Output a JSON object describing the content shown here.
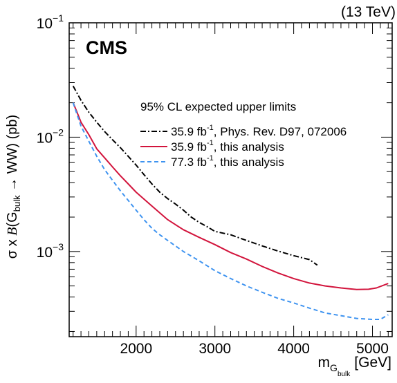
{
  "chart_data": {
    "type": "line",
    "experiment": "CMS",
    "energy": "(13 TeV)",
    "xlabel": {
      "main": "m",
      "sub": "G",
      "subsub": "bulk",
      "unit": "[GeV]"
    },
    "ylabel": {
      "pre": "σ x ",
      "b": "B",
      "mid": "(G",
      "sub": "bulk",
      "post": " → WW) (pb)"
    },
    "xlim": [
      1150,
      5250
    ],
    "ylim": [
      0.00018,
      0.1
    ],
    "yscale": "log",
    "xticks": [
      2000,
      3000,
      4000,
      5000
    ],
    "xtick_labels": [
      "2000",
      "3000",
      "4000",
      "5000"
    ],
    "ytick_labels": [
      {
        "value": 0.1,
        "base": "10",
        "exp": "−1"
      },
      {
        "value": 0.01,
        "base": "10",
        "exp": "−2"
      },
      {
        "value": 0.001,
        "base": "10",
        "exp": "−3"
      }
    ],
    "legend_title": "95% CL expected upper limits",
    "legend_placement": "top-right",
    "series": [
      {
        "legend_lumi": "35.9 fb",
        "legend_exp": "-1",
        "legend_text": ", Phys. Rev. D97, 072006",
        "color": "#000000",
        "dash": "8,3,2,3",
        "width": 2,
        "x": [
          1200,
          1300,
          1400,
          1500,
          1600,
          1700,
          1800,
          1900,
          2000,
          2100,
          2200,
          2300,
          2400,
          2500,
          2600,
          2700,
          2800,
          2900,
          3000,
          3200,
          3400,
          3600,
          3800,
          4000,
          4200,
          4300
        ],
        "y": [
          0.028,
          0.021,
          0.0165,
          0.0135,
          0.0112,
          0.0095,
          0.0081,
          0.0068,
          0.0057,
          0.0047,
          0.0039,
          0.0033,
          0.0029,
          0.0026,
          0.0023,
          0.002,
          0.0018,
          0.00165,
          0.0015,
          0.0014,
          0.00125,
          0.00112,
          0.00101,
          0.00092,
          0.00085,
          0.00076
        ]
      },
      {
        "legend_lumi": "35.9 fb",
        "legend_exp": "-1",
        "legend_text": ", this analysis",
        "color": "#d2143c",
        "dash": "",
        "width": 2,
        "x": [
          1200,
          1250,
          1300,
          1400,
          1500,
          1600,
          1700,
          1800,
          1900,
          2000,
          2200,
          2400,
          2600,
          2800,
          3000,
          3200,
          3400,
          3600,
          3800,
          4000,
          4200,
          4400,
          4600,
          4800,
          4950,
          5050,
          5200
        ],
        "y": [
          0.02,
          0.0165,
          0.0135,
          0.0105,
          0.0079,
          0.0066,
          0.0055,
          0.0046,
          0.0039,
          0.0033,
          0.0025,
          0.0019,
          0.00155,
          0.00133,
          0.00115,
          0.00098,
          0.00086,
          0.00074,
          0.00065,
          0.00058,
          0.00053,
          0.0005,
          0.00048,
          0.000465,
          0.000468,
          0.00048,
          0.000525
        ]
      },
      {
        "legend_lumi": "77.3 fb",
        "legend_exp": "-1",
        "legend_text": ", this analysis",
        "color": "#3e93f0",
        "dash": "6,4",
        "width": 2,
        "x": [
          1200,
          1300,
          1400,
          1500,
          1600,
          1700,
          1800,
          1900,
          2000,
          2100,
          2200,
          2300,
          2400,
          2600,
          2800,
          3000,
          3200,
          3400,
          3600,
          3800,
          4000,
          4200,
          4400,
          4600,
          4800,
          5000,
          5100,
          5200
        ],
        "y": [
          0.02,
          0.0125,
          0.0092,
          0.0068,
          0.0052,
          0.0042,
          0.0034,
          0.0028,
          0.0023,
          0.0019,
          0.0016,
          0.0014,
          0.00125,
          0.001,
          0.00083,
          0.00068,
          0.00058,
          0.0005,
          0.00044,
          0.00039,
          0.000355,
          0.00032,
          0.00029,
          0.000275,
          0.00026,
          0.000255,
          0.000255,
          0.00028
        ]
      }
    ]
  }
}
